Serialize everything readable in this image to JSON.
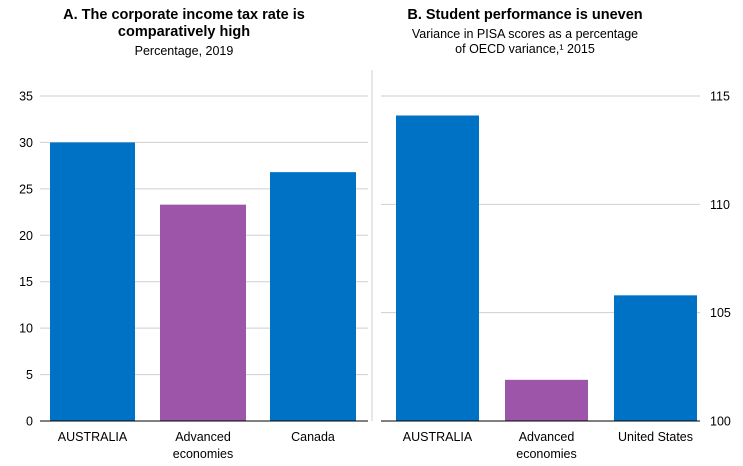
{
  "colors": {
    "blue": "#0072C6",
    "purple": "#9C55A8",
    "grid": "#cfcfcf"
  },
  "chart_data": [
    {
      "type": "bar",
      "title": "A. The corporate income tax rate is comparatively high",
      "title_line1": "A. The corporate income tax rate is",
      "title_line2": "comparatively high",
      "subtitle": "Percentage, 2019",
      "categories": [
        "AUSTRALIA",
        "Advanced economies",
        "Canada"
      ],
      "category_lines": [
        [
          "AUSTRALIA"
        ],
        [
          "Advanced",
          "economies"
        ],
        [
          "Canada"
        ]
      ],
      "values": [
        30,
        23.3,
        26.8
      ],
      "bar_colors": [
        "#0072C6",
        "#9C55A8",
        "#0072C6"
      ],
      "ylim": [
        0,
        35
      ],
      "yticks": [
        0,
        5,
        10,
        15,
        20,
        25,
        30,
        35
      ],
      "y_axis_side": "left",
      "grid": true
    },
    {
      "type": "bar",
      "title": "B. Student performance is uneven",
      "subtitle": "Variance in PISA scores as a percentage of OECD variance,¹ 2015",
      "subtitle_line1": "Variance in PISA scores as a percentage",
      "subtitle_line2": "of OECD variance,¹ 2015",
      "categories": [
        "AUSTRALIA",
        "Advanced economies",
        "United States"
      ],
      "category_lines": [
        [
          "AUSTRALIA"
        ],
        [
          "Advanced",
          "economies"
        ],
        [
          "United States"
        ]
      ],
      "values": [
        114.1,
        101.9,
        105.8
      ],
      "bar_colors": [
        "#0072C6",
        "#9C55A8",
        "#0072C6"
      ],
      "ylim": [
        100,
        115
      ],
      "yticks": [
        100,
        105,
        110,
        115
      ],
      "y_axis_side": "right",
      "grid": true
    }
  ]
}
